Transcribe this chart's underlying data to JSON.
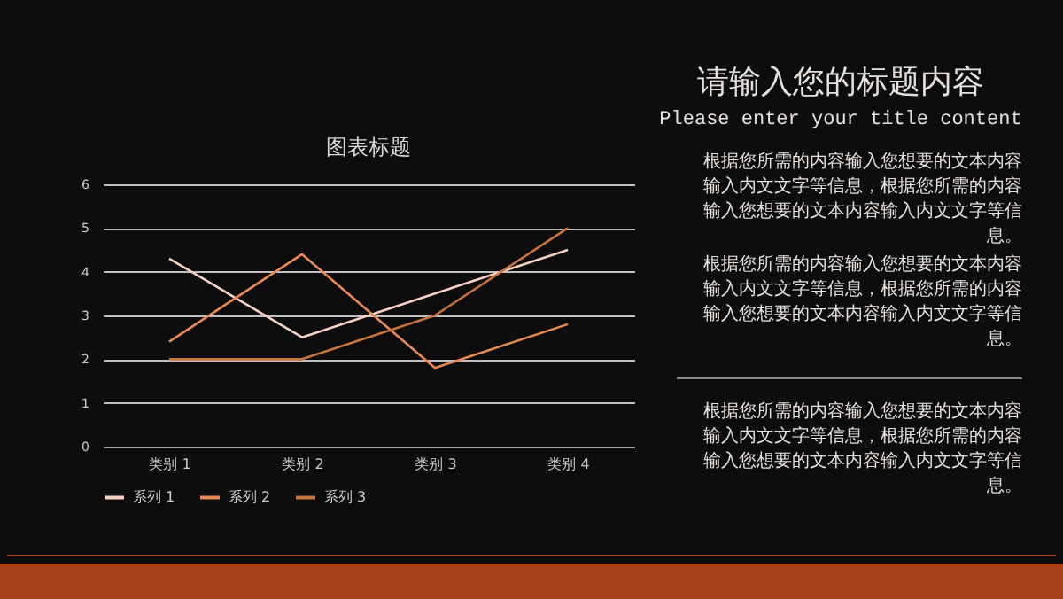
{
  "chart_data": {
    "type": "line",
    "title": "图表标题",
    "categories": [
      "类别 1",
      "类别 2",
      "类别 3",
      "类别 4"
    ],
    "series": [
      {
        "name": "系列 1",
        "color": "#f6d2c4",
        "values": [
          4.3,
          2.5,
          3.5,
          4.5
        ]
      },
      {
        "name": "系列 2",
        "color": "#e98a55",
        "values": [
          2.4,
          4.4,
          1.8,
          2.8
        ]
      },
      {
        "name": "系列 3",
        "color": "#c8743e",
        "values": [
          2,
          2,
          3,
          5
        ]
      }
    ],
    "ylim": [
      0,
      6
    ],
    "yticks": [
      0,
      1,
      2,
      3,
      4,
      5,
      6
    ],
    "grid": "y",
    "legend": "bottom",
    "marker": "none",
    "line_style": "solid",
    "annotations": [
      "请输入您的标题内容",
      "Please enter your title content",
      "根据您所需的内容输入您想要的文本内容输入内文文字等信息，根据您所需的内容输入您想要的文本内容输入内文文字等信息。",
      "根据您所需的内容输入您想要的文本内容输入内文文字等信息，根据您所需的内容输入您想要的文本内容输入内文文字等信息。",
      "根据您所需的内容输入您想要的文本内容输入内文文字等信息，根据您所需的内容输入您想要的文本内容输入内文文字等信息。"
    ]
  }
}
